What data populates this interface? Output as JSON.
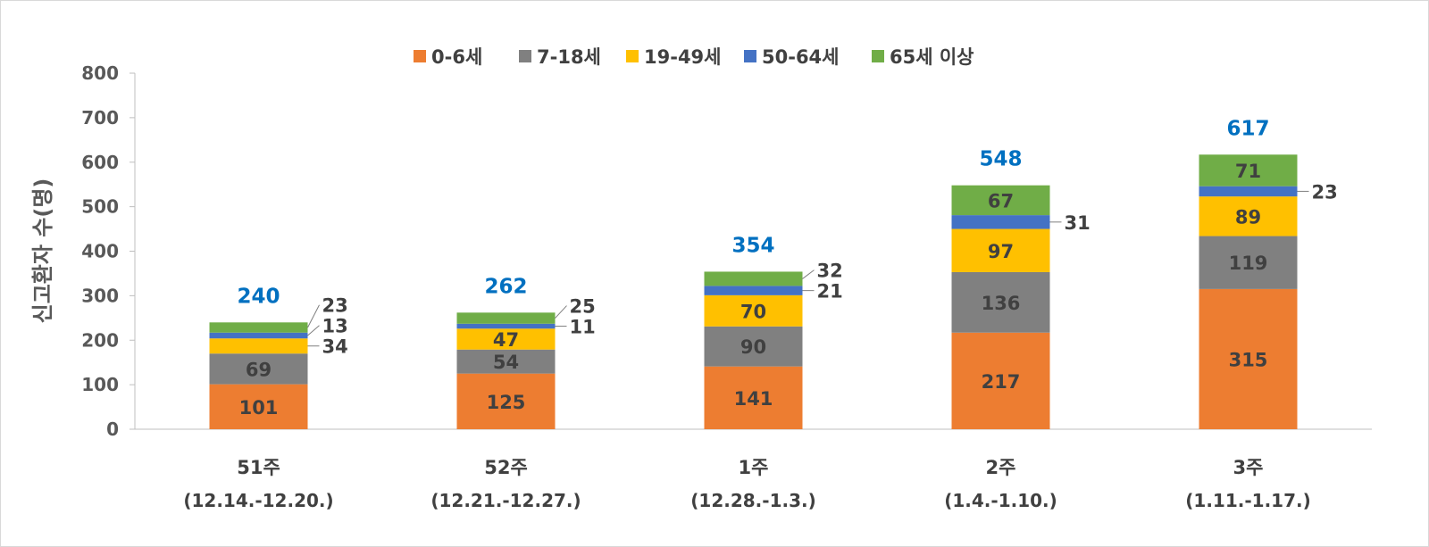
{
  "chart_data": {
    "type": "bar",
    "stacked": true,
    "title": "",
    "xlabel": "",
    "ylabel": "신고환자 수(명)",
    "ylim": [
      0,
      800
    ],
    "yticks": [
      0,
      100,
      200,
      300,
      400,
      500,
      600,
      700,
      800
    ],
    "grid": false,
    "legend_placement": "top",
    "categories": [
      "51주",
      "52주",
      "1주",
      "2주",
      "3주"
    ],
    "category_sublabels": [
      "(12.14.-12.20.)",
      "(12.21.-12.27.)",
      "(12.28.-1.3.)",
      "(1.4.-1.10.)",
      "(1.11.-1.17.)"
    ],
    "series": [
      {
        "name": "0-6세",
        "color": "#ED7D31",
        "values": [
          101,
          125,
          141,
          217,
          315
        ]
      },
      {
        "name": "7-18세",
        "color": "#808080",
        "values": [
          69,
          54,
          90,
          136,
          119
        ]
      },
      {
        "name": "19-49세",
        "color": "#FFC000",
        "values": [
          34,
          47,
          70,
          97,
          89
        ]
      },
      {
        "name": "50-64세",
        "color": "#4472C4",
        "values": [
          13,
          11,
          21,
          31,
          23
        ]
      },
      {
        "name": "65세 이상",
        "color": "#70AD47",
        "values": [
          23,
          25,
          32,
          67,
          71
        ]
      }
    ],
    "totals": [
      240,
      262,
      354,
      548,
      617
    ],
    "total_label_color": "#0070C0"
  }
}
